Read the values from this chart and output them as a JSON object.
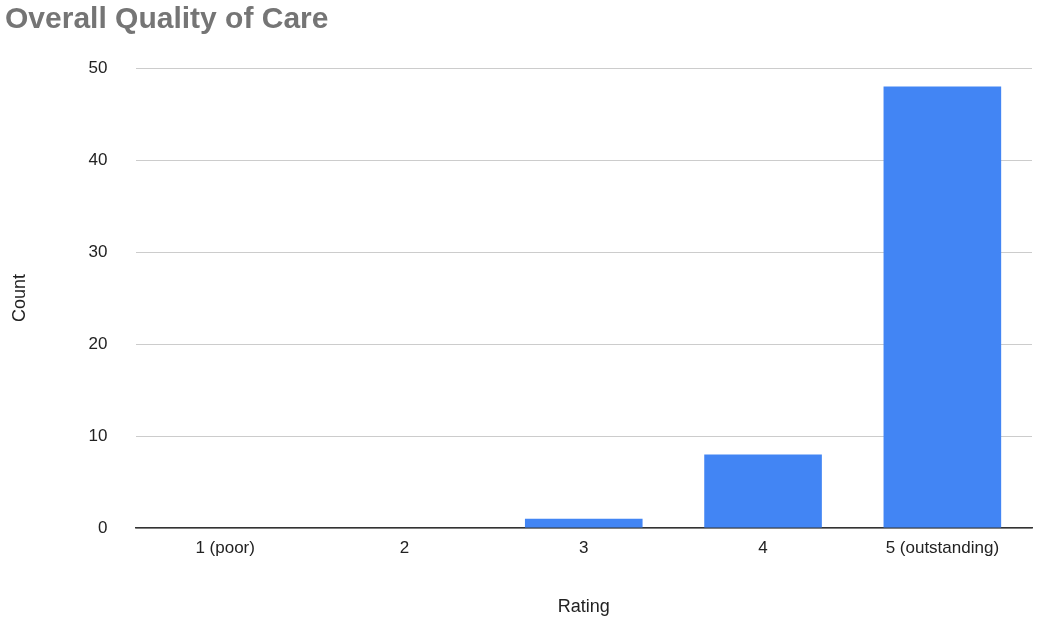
{
  "chart_data": {
    "type": "bar",
    "title": "Overall Quality of Care",
    "xlabel": "Rating",
    "ylabel": "Count",
    "categories": [
      "1 (poor)",
      "2",
      "3",
      "4",
      "5 (outstanding)"
    ],
    "values": [
      0,
      0,
      1,
      8,
      48
    ],
    "color": "#4285f4",
    "ylim": [
      0,
      50
    ],
    "yticks": [
      0,
      10,
      20,
      30,
      40,
      50
    ],
    "grid": "y",
    "legend": false
  }
}
